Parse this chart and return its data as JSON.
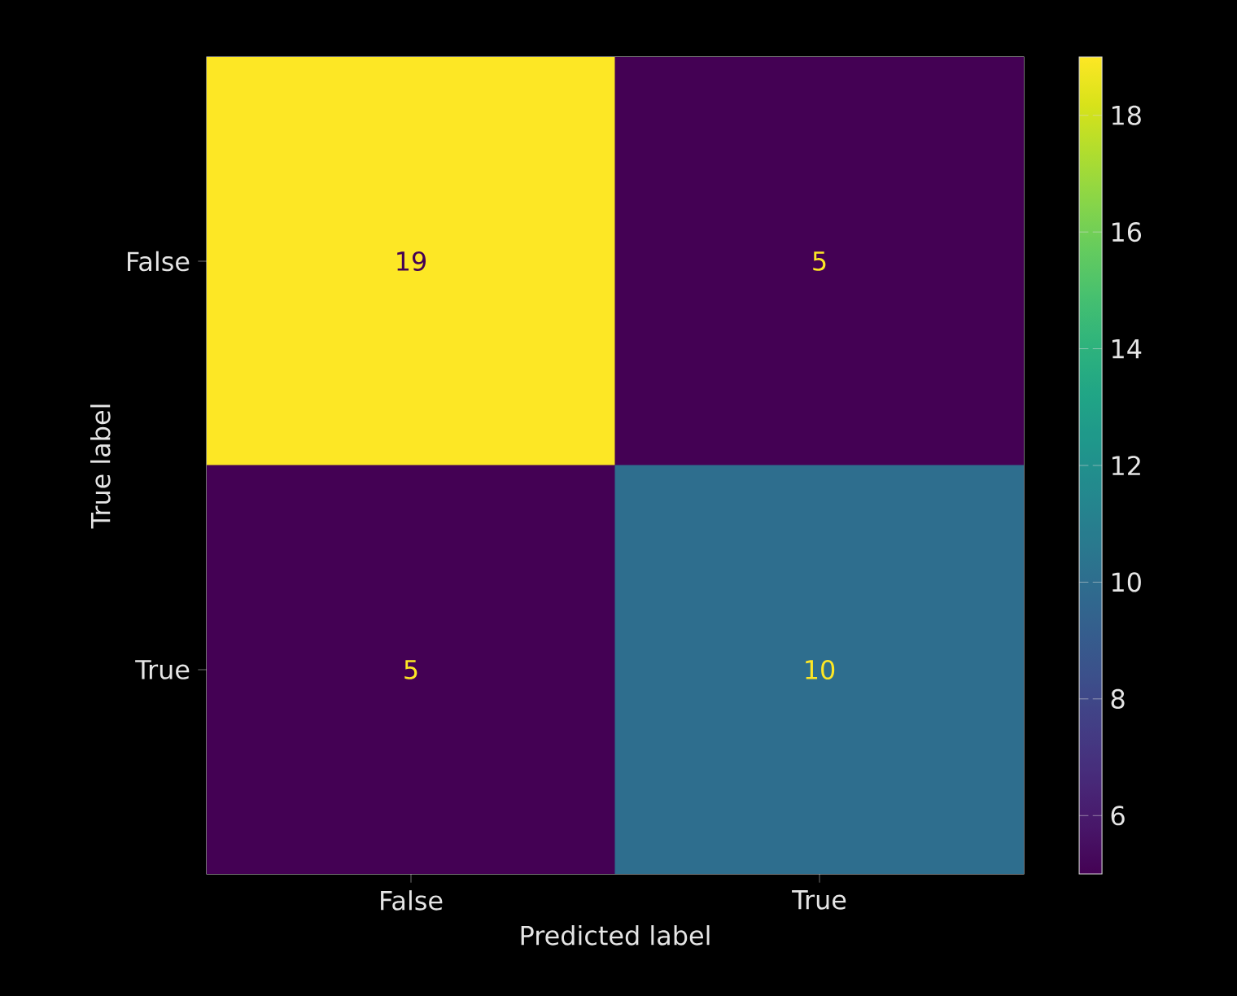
{
  "chart_data": {
    "type": "heatmap",
    "xlabel": "Predicted label",
    "ylabel": "True label",
    "categories": [
      "False",
      "True"
    ],
    "y_categories": [
      "False",
      "True"
    ],
    "cells": [
      [
        19,
        5
      ],
      [
        5,
        10
      ]
    ],
    "clim": [
      5,
      19
    ],
    "cticks": [
      6,
      8,
      10,
      12,
      14,
      16,
      18
    ],
    "data_labels": true
  }
}
